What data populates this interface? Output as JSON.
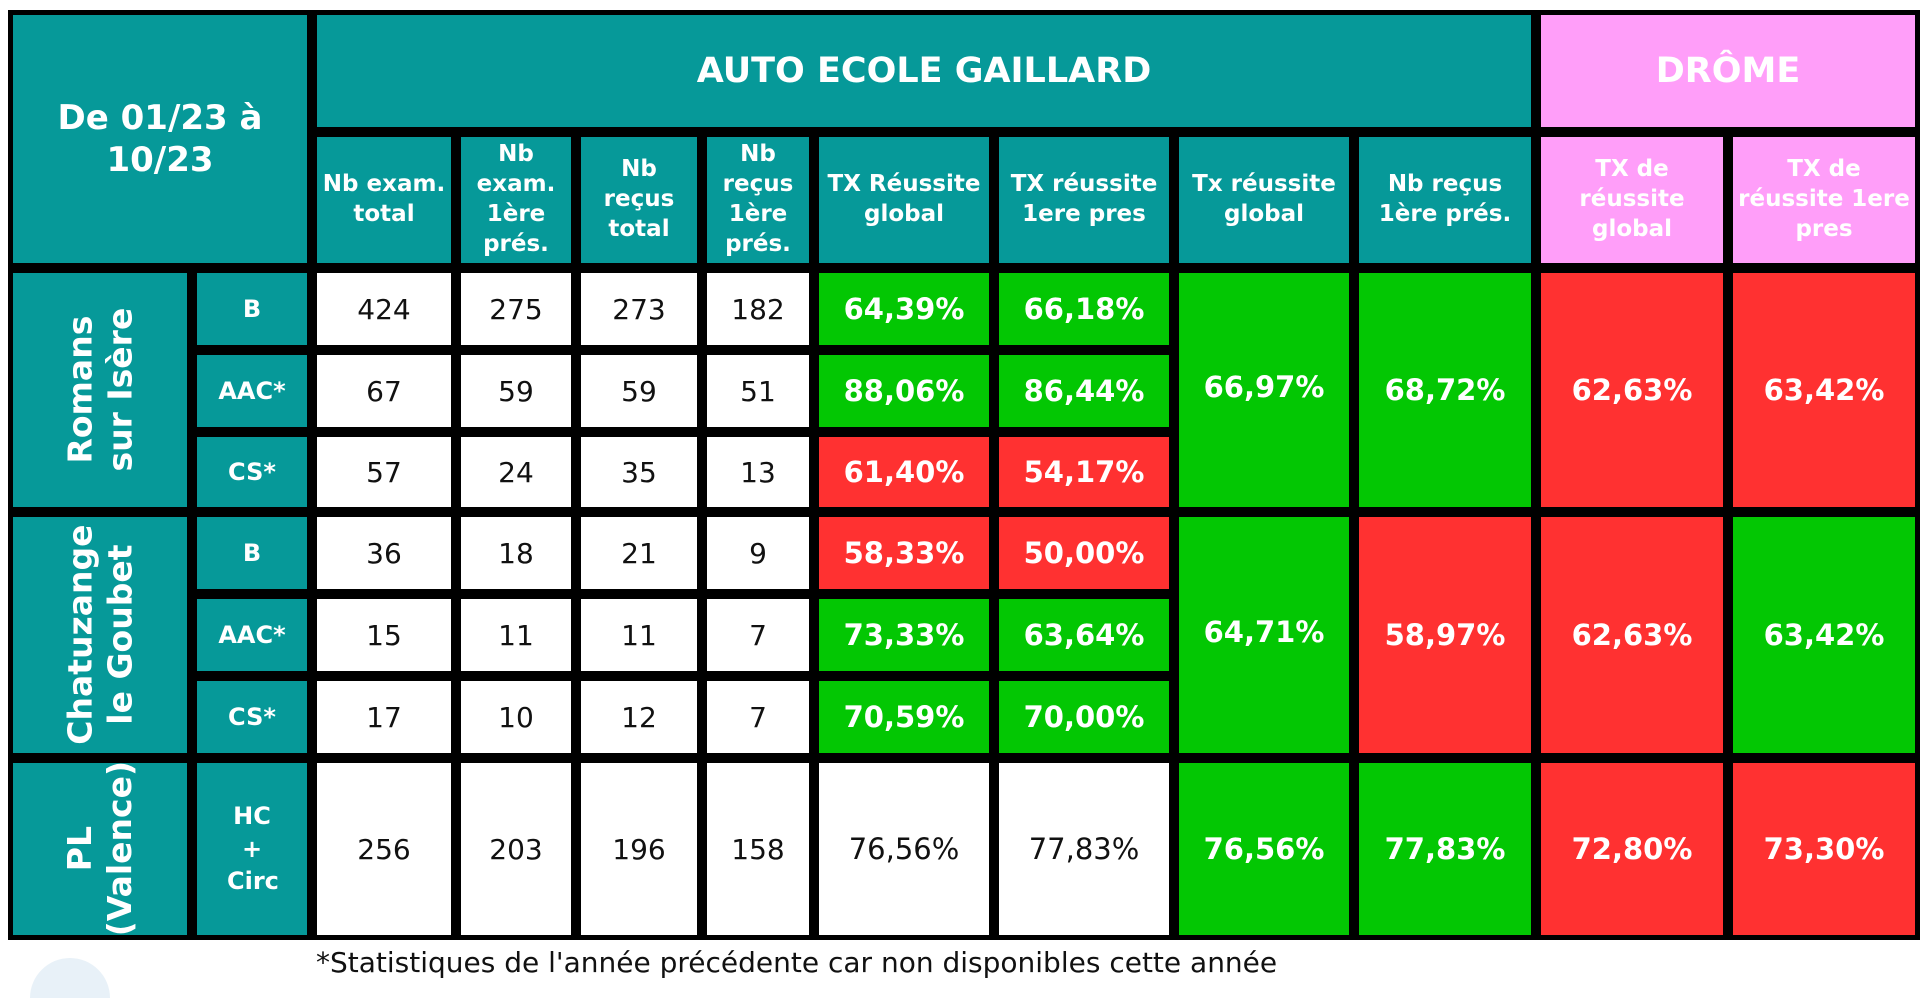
{
  "period_label": "De 01/23 à 10/23",
  "school_title": "AUTO ECOLE GAILLARD",
  "region_title": "DRÔME",
  "columns": {
    "nb_exam_total": "Nb exam. total",
    "nb_exam_first": "Nb exam. 1ère prés.",
    "nb_recus_total": "Nb reçus total",
    "nb_recus_first": "Nb reçus 1ère prés.",
    "tx_reussite_global": "TX Réussite global",
    "tx_reussite_first": "TX réussite 1ere pres",
    "site_tx_global": "Tx réussite global",
    "site_nb_recus_first": "Nb reçus 1ère prés.",
    "region_tx_global": "TX de réussite global",
    "region_tx_first": "TX de réussite 1ere pres"
  },
  "groups": [
    {
      "site": "Romans sur Isère",
      "rows": [
        {
          "category": "B",
          "nb_exam_total": "424",
          "nb_exam_first": "275",
          "nb_recus_total": "273",
          "nb_recus_first": "182",
          "tx_global": "64,39%",
          "tx_first": "66,18%",
          "tx_global_status": "good",
          "tx_first_status": "good"
        },
        {
          "category": "AAC*",
          "nb_exam_total": "67",
          "nb_exam_first": "59",
          "nb_recus_total": "59",
          "nb_recus_first": "51",
          "tx_global": "88,06%",
          "tx_first": "86,44%",
          "tx_global_status": "good",
          "tx_first_status": "good"
        },
        {
          "category": "CS*",
          "nb_exam_total": "57",
          "nb_exam_first": "24",
          "nb_recus_total": "35",
          "nb_recus_first": "13",
          "tx_global": "61,40%",
          "tx_first": "54,17%",
          "tx_global_status": "bad",
          "tx_first_status": "bad"
        }
      ],
      "site_tx_global": "66,97%",
      "site_nb_recus_first": "68,72%",
      "region_tx_global": "62,63%",
      "region_tx_first": "63,42%"
    },
    {
      "site": "Chatuzange le Goubet",
      "rows": [
        {
          "category": "B",
          "nb_exam_total": "36",
          "nb_exam_first": "18",
          "nb_recus_total": "21",
          "nb_recus_first": "9",
          "tx_global": "58,33%",
          "tx_first": "50,00%",
          "tx_global_status": "bad",
          "tx_first_status": "bad"
        },
        {
          "category": "AAC*",
          "nb_exam_total": "15",
          "nb_exam_first": "11",
          "nb_recus_total": "11",
          "nb_recus_first": "7",
          "tx_global": "73,33%",
          "tx_first": "63,64%",
          "tx_global_status": "good",
          "tx_first_status": "good"
        },
        {
          "category": "CS*",
          "nb_exam_total": "17",
          "nb_exam_first": "10",
          "nb_recus_total": "12",
          "nb_recus_first": "7",
          "tx_global": "70,59%",
          "tx_first": "70,00%",
          "tx_global_status": "good",
          "tx_first_status": "good"
        }
      ],
      "site_tx_global": "64,71%",
      "site_nb_recus_first": "58,97%",
      "region_tx_global": "62,63%",
      "region_tx_first": "63,42%"
    },
    {
      "site": "PL (Valence)",
      "rows": [
        {
          "category": "HC + Circ",
          "nb_exam_total": "256",
          "nb_exam_first": "203",
          "nb_recus_total": "196",
          "nb_recus_first": "158",
          "tx_global": "76,56%",
          "tx_first": "77,83%",
          "tx_global_status": "neutral",
          "tx_first_status": "neutral"
        }
      ],
      "site_tx_global": "76,56%",
      "site_nb_recus_first": "77,83%",
      "region_tx_global": "72,80%",
      "region_tx_first": "73,30%"
    }
  ],
  "footnote": "*Statistiques de l'année précédente car non disponibles cette année",
  "colors": {
    "header_teal": "#069999",
    "region_pink": "#ff9ef9",
    "good_green": "#03c703",
    "bad_red": "#ff3131",
    "border": "#000000"
  }
}
